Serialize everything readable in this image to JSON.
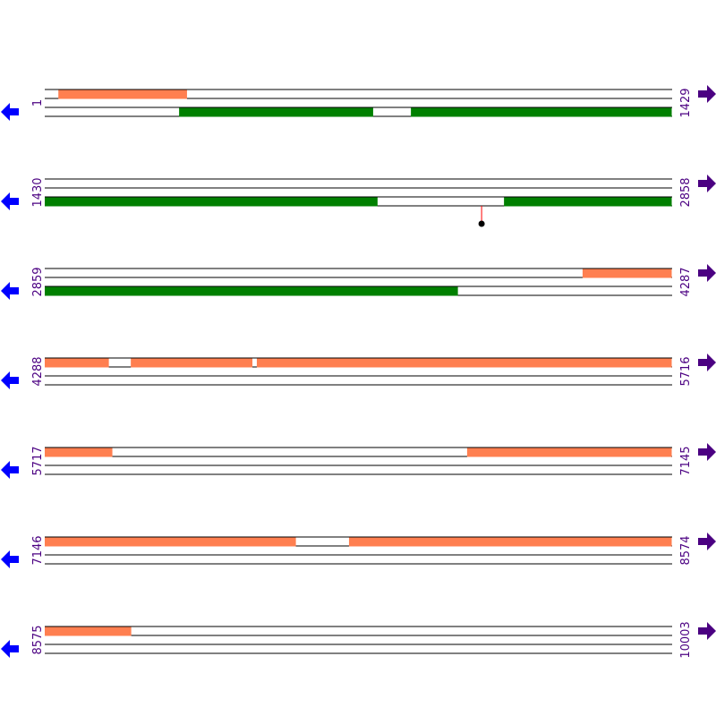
{
  "colors": {
    "forward_feature": "#ff7f50",
    "reverse_feature": "#008000",
    "label": "#4b0082",
    "left_arrow": "#0000ff",
    "right_arrow": "#4b0082",
    "marker": "#ff0000"
  },
  "rows": [
    {
      "start": "1",
      "end": "1429",
      "s": 1,
      "e": 1429,
      "track1": [
        [
          32,
          325
        ]
      ],
      "track2": [
        [
          307,
          749
        ],
        [
          835,
          1429
        ]
      ]
    },
    {
      "start": "1430",
      "end": "2858",
      "s": 1430,
      "e": 2858,
      "track1": [],
      "track2": [
        [
          1430,
          2188
        ],
        [
          2476,
          2858
        ]
      ],
      "markers": [
        2425
      ]
    },
    {
      "start": "2859",
      "end": "4287",
      "s": 2859,
      "e": 4287,
      "track1": [
        [
          4084,
          4287
        ]
      ],
      "track2": [
        [
          2859,
          3800
        ]
      ]
    },
    {
      "start": "4288",
      "end": "5716",
      "s": 4288,
      "e": 5716,
      "track1": [
        [
          4288,
          4434
        ],
        [
          4484,
          4761
        ],
        [
          4771,
          5716
        ]
      ],
      "track2": []
    },
    {
      "start": "5717",
      "end": "7145",
      "s": 5717,
      "e": 7145,
      "track1": [
        [
          5717,
          5871
        ],
        [
          6679,
          7145
        ]
      ],
      "track2": []
    },
    {
      "start": "7146",
      "end": "8574",
      "s": 7146,
      "e": 8574,
      "track1": [
        [
          7146,
          7718
        ],
        [
          7839,
          8574
        ]
      ],
      "track2": []
    },
    {
      "start": "8575",
      "end": "10003",
      "s": 8575,
      "e": 10003,
      "track1": [
        [
          8575,
          8772
        ]
      ],
      "track2": []
    }
  ]
}
